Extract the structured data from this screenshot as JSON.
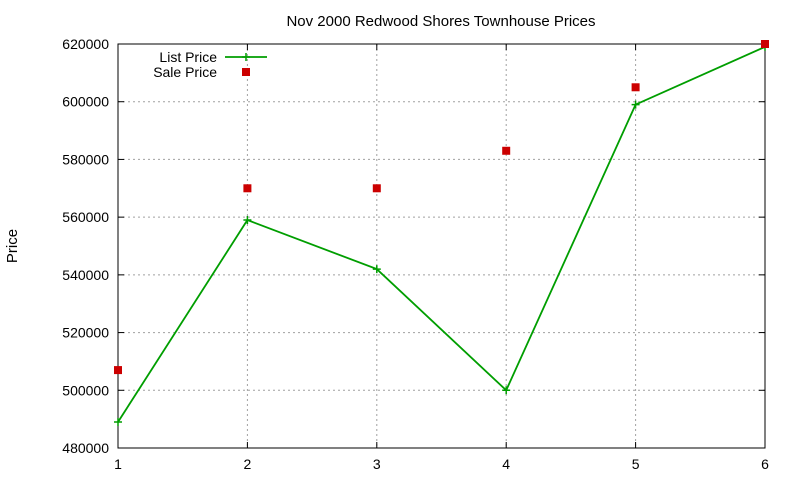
{
  "chart_data": {
    "type": "line",
    "title": "Nov 2000 Redwood Shores Townhouse Prices",
    "xlabel": "",
    "ylabel": "Price",
    "x": [
      1,
      2,
      3,
      4,
      5,
      6
    ],
    "xlim": [
      1,
      6
    ],
    "ylim": [
      480000,
      620000
    ],
    "xticks": [
      "1",
      "2",
      "3",
      "4",
      "5",
      "6"
    ],
    "yticks": [
      "480000",
      "500000",
      "520000",
      "540000",
      "560000",
      "580000",
      "600000",
      "620000"
    ],
    "grid": true,
    "legend_position": "top-left",
    "series": [
      {
        "name": "List Price",
        "style": "linespoints",
        "marker": "plus",
        "color": "#009e00",
        "values": [
          489000,
          559000,
          542000,
          500000,
          599000,
          619000
        ]
      },
      {
        "name": "Sale Price",
        "style": "points",
        "marker": "square",
        "color": "#cc0000",
        "values": [
          507000,
          570000,
          570000,
          583000,
          605000,
          620000
        ]
      }
    ]
  }
}
